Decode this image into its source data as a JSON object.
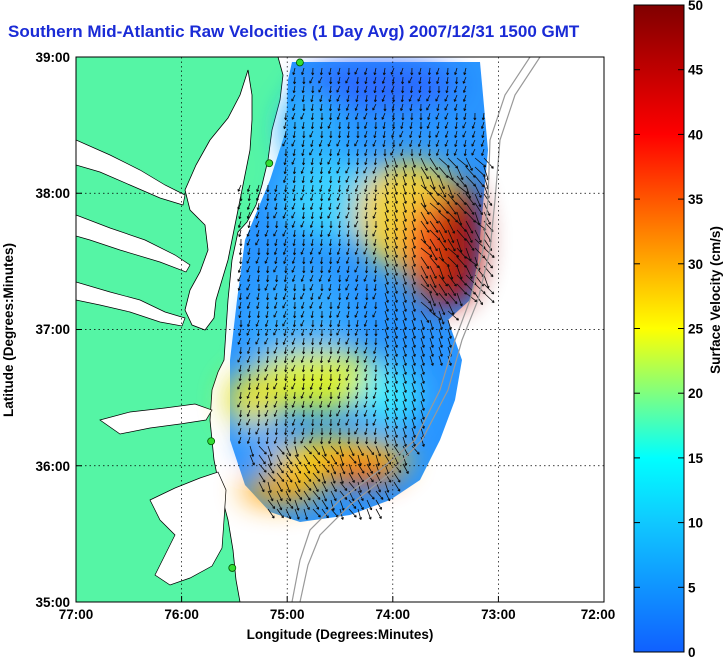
{
  "title": "Southern Mid-Atlantic Raw Velocities (1 Day Avg) 2007/12/31 1500 GMT",
  "map": {
    "xlabel": "Longitude (Degrees:Minutes)",
    "ylabel": "Latitude (Degrees:Minutes)",
    "x_ticks": [
      "77:00",
      "76:00",
      "75:00",
      "74:00",
      "73:00",
      "72:00"
    ],
    "y_ticks": [
      "39:00",
      "38:00",
      "37:00",
      "36:00",
      "35:00"
    ],
    "lon_range": [
      -77,
      -72
    ],
    "lat_range": [
      35,
      39
    ],
    "land_color": "#55f5a5",
    "stations": [
      {
        "lon": -74.88,
        "lat": 38.96
      },
      {
        "lon": -75.17,
        "lat": 38.22
      },
      {
        "lon": -75.72,
        "lat": 36.18
      },
      {
        "lon": -75.52,
        "lat": 35.25
      }
    ]
  },
  "colorbar": {
    "label": "Surface Velocity (cm/s)",
    "ticks": [
      "50",
      "45",
      "40",
      "35",
      "30",
      "25",
      "20",
      "15",
      "10",
      "5",
      "0"
    ],
    "min": 0,
    "max": 50,
    "colors": [
      "#1060ff",
      "#00ffff",
      "#ffff00",
      "#ff8000",
      "#ff0000",
      "#800000"
    ]
  }
}
